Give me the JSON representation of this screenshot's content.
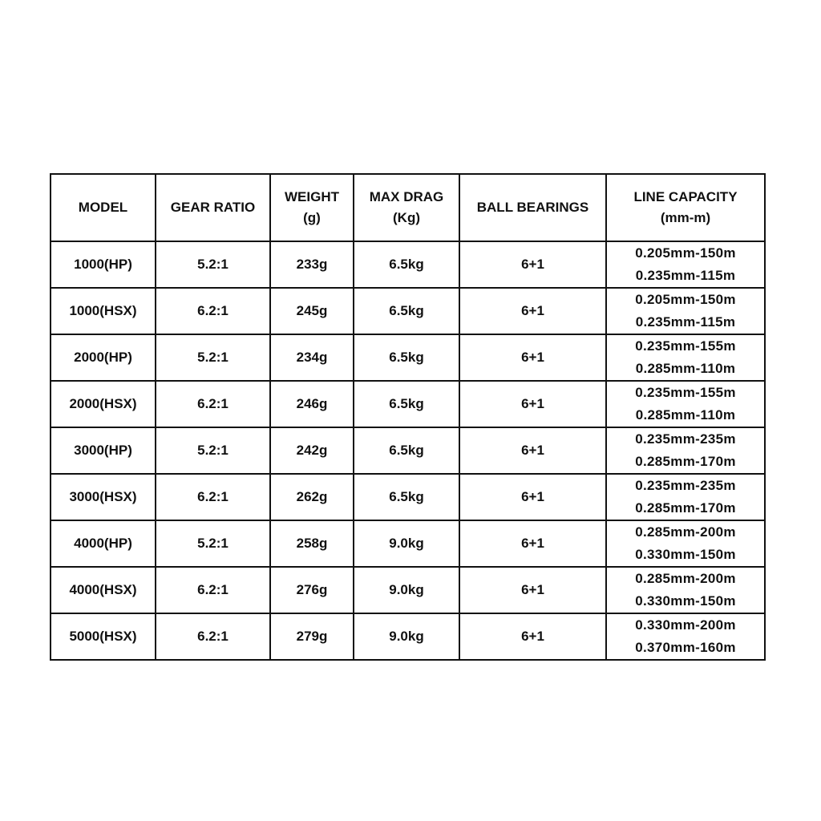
{
  "table": {
    "headers": [
      {
        "line1": "MODEL",
        "line2": ""
      },
      {
        "line1": "GEAR RATIO",
        "line2": ""
      },
      {
        "line1": "WEIGHT",
        "line2": "(g)"
      },
      {
        "line1": "MAX DRAG",
        "line2": "(Kg)"
      },
      {
        "line1": "BALL BEARINGS",
        "line2": ""
      },
      {
        "line1": "LINE CAPACITY",
        "line2": "(mm-m)"
      }
    ],
    "rows": [
      {
        "model": "1000(HP)",
        "gear_ratio": "5.2:1",
        "weight": "233g",
        "max_drag": "6.5kg",
        "ball_bearings": "6+1",
        "line_capacity": [
          "0.205mm-150m",
          "0.235mm-115m"
        ]
      },
      {
        "model": "1000(HSX)",
        "gear_ratio": "6.2:1",
        "weight": "245g",
        "max_drag": "6.5kg",
        "ball_bearings": "6+1",
        "line_capacity": [
          "0.205mm-150m",
          "0.235mm-115m"
        ]
      },
      {
        "model": "2000(HP)",
        "gear_ratio": "5.2:1",
        "weight": "234g",
        "max_drag": "6.5kg",
        "ball_bearings": "6+1",
        "line_capacity": [
          "0.235mm-155m",
          "0.285mm-110m"
        ]
      },
      {
        "model": "2000(HSX)",
        "gear_ratio": "6.2:1",
        "weight": "246g",
        "max_drag": "6.5kg",
        "ball_bearings": "6+1",
        "line_capacity": [
          "0.235mm-155m",
          "0.285mm-110m"
        ]
      },
      {
        "model": "3000(HP)",
        "gear_ratio": "5.2:1",
        "weight": "242g",
        "max_drag": "6.5kg",
        "ball_bearings": "6+1",
        "line_capacity": [
          "0.235mm-235m",
          "0.285mm-170m"
        ]
      },
      {
        "model": "3000(HSX)",
        "gear_ratio": "6.2:1",
        "weight": "262g",
        "max_drag": "6.5kg",
        "ball_bearings": "6+1",
        "line_capacity": [
          "0.235mm-235m",
          "0.285mm-170m"
        ]
      },
      {
        "model": "4000(HP)",
        "gear_ratio": "5.2:1",
        "weight": "258g",
        "max_drag": "9.0kg",
        "ball_bearings": "6+1",
        "line_capacity": [
          "0.285mm-200m",
          "0.330mm-150m"
        ]
      },
      {
        "model": "4000(HSX)",
        "gear_ratio": "6.2:1",
        "weight": "276g",
        "max_drag": "9.0kg",
        "ball_bearings": "6+1",
        "line_capacity": [
          "0.285mm-200m",
          "0.330mm-150m"
        ]
      },
      {
        "model": "5000(HSX)",
        "gear_ratio": "6.2:1",
        "weight": "279g",
        "max_drag": "9.0kg",
        "ball_bearings": "6+1",
        "line_capacity": [
          "0.330mm-200m",
          "0.370mm-160m"
        ]
      }
    ]
  }
}
